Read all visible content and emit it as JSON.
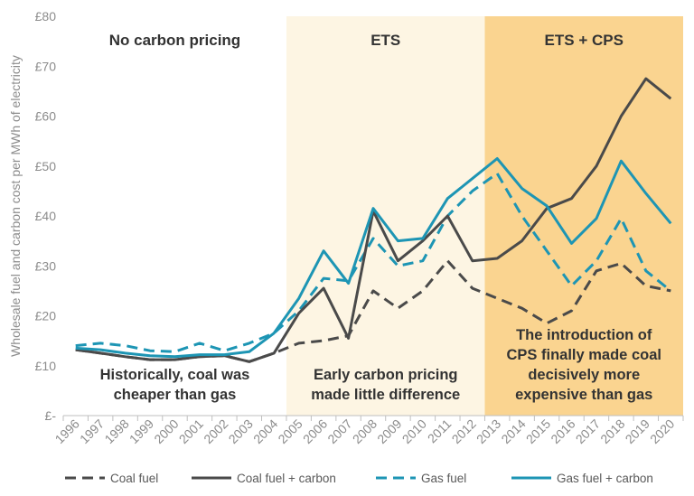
{
  "chart_data": {
    "type": "line",
    "ylabel": "Wholesale fuel and carbon cost per MWh of electricity",
    "ylim": [
      0,
      80
    ],
    "yticks": [
      {
        "value": 0,
        "label": "£-"
      },
      {
        "value": 10,
        "label": "£10"
      },
      {
        "value": 20,
        "label": "£20"
      },
      {
        "value": 30,
        "label": "£30"
      },
      {
        "value": 40,
        "label": "£40"
      },
      {
        "value": 50,
        "label": "£50"
      },
      {
        "value": 60,
        "label": "£60"
      },
      {
        "value": 70,
        "label": "£70"
      },
      {
        "value": 80,
        "label": "£80"
      }
    ],
    "grid": false,
    "legend_position": "bottom",
    "categories": [
      "1996",
      "1997",
      "1998",
      "1999",
      "2000",
      "2001",
      "2002",
      "2003",
      "2004",
      "2005",
      "2006",
      "2007",
      "2008",
      "2009",
      "2010",
      "2011",
      "2012",
      "2013",
      "2014",
      "2015",
      "2016",
      "2017",
      "2018",
      "2019",
      "2020"
    ],
    "regions": [
      {
        "label": "No carbon pricing",
        "from": "1996",
        "to": "2004",
        "color": "#ffffff",
        "annotation": [
          "Historically, coal was",
          "cheaper than gas"
        ]
      },
      {
        "label": "ETS",
        "from": "2005",
        "to": "2012",
        "color": "#fdf5e3",
        "annotation": [
          "Early carbon pricing",
          "made little difference"
        ]
      },
      {
        "label": "ETS + CPS",
        "from": "2013",
        "to": "2020",
        "color": "#fad490",
        "annotation": [
          "The introduction of",
          "CPS finally made coal",
          "decisively more",
          "expensive than gas"
        ]
      }
    ],
    "series": [
      {
        "name": "Coal fuel",
        "color": "#4a4a4a",
        "dashed": true,
        "values": [
          13.2,
          12.5,
          11.8,
          11.2,
          11.2,
          11.8,
          12.0,
          10.8,
          12.5,
          14.5,
          15.0,
          16.0,
          25.0,
          21.5,
          25.0,
          31.0,
          25.5,
          23.5,
          21.5,
          18.5,
          21.0,
          29.0,
          30.5,
          26.0,
          25.0
        ]
      },
      {
        "name": "Coal fuel + carbon",
        "color": "#4a4a4a",
        "dashed": false,
        "values": [
          13.2,
          12.5,
          11.8,
          11.2,
          11.2,
          11.8,
          12.0,
          10.8,
          12.5,
          20.5,
          25.5,
          15.5,
          41.0,
          31.0,
          35.0,
          40.0,
          31.0,
          31.5,
          35.0,
          41.5,
          43.5,
          50.0,
          60.0,
          67.5,
          63.5
        ]
      },
      {
        "name": "Gas fuel",
        "color": "#1d95b4",
        "dashed": true,
        "values": [
          14.0,
          14.5,
          14.0,
          13.0,
          12.8,
          14.5,
          13.0,
          14.5,
          16.5,
          21.0,
          27.5,
          27.0,
          35.5,
          30.0,
          31.0,
          40.0,
          45.0,
          48.5,
          40.0,
          33.0,
          26.0,
          31.0,
          39.5,
          29.0,
          25.0
        ]
      },
      {
        "name": "Gas fuel + carbon",
        "color": "#1d95b4",
        "dashed": false,
        "values": [
          13.5,
          13.2,
          12.5,
          12.0,
          11.8,
          12.2,
          12.2,
          12.8,
          16.5,
          23.5,
          33.0,
          26.5,
          41.5,
          35.0,
          35.5,
          43.5,
          47.5,
          51.5,
          45.5,
          42.0,
          34.5,
          39.5,
          51.0,
          44.5,
          38.5
        ]
      }
    ]
  }
}
